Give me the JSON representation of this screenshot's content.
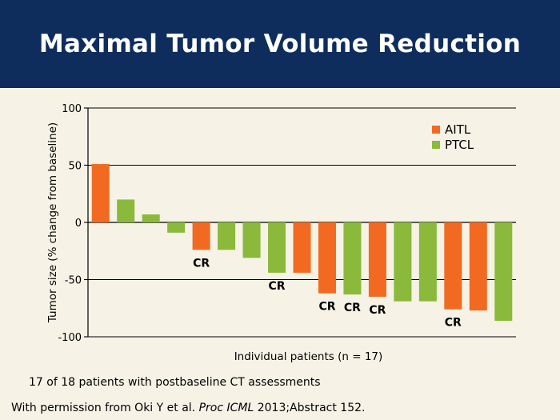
{
  "slide": {
    "title": "Maximal Tumor Volume Reduction",
    "note": "17 of 18 patients with postbaseline CT assessments",
    "credit_prefix": "With permission from Oki Y et al. ",
    "credit_journal": "Proc ICML",
    "credit_suffix": " 2013;Abstract 152."
  },
  "colors": {
    "header_bg": "#0f2d5c",
    "AITL": "#f26a21",
    "PTCL": "#8ab93b"
  },
  "chart_data": {
    "type": "bar",
    "title": "",
    "xlabel": "Individual patients (n = 17)",
    "ylabel": "Tumor size (% change from baseline)",
    "ylim": [
      -100,
      100
    ],
    "yticks": [
      100,
      50,
      0,
      -50,
      -100
    ],
    "grid": true,
    "legend_position": "top-right",
    "legend": [
      "AITL",
      "PTCL"
    ],
    "bars": [
      {
        "value": 51,
        "group": "AITL",
        "label": ""
      },
      {
        "value": 20,
        "group": "PTCL",
        "label": ""
      },
      {
        "value": 7,
        "group": "PTCL",
        "label": ""
      },
      {
        "value": -9,
        "group": "PTCL",
        "label": ""
      },
      {
        "value": -24,
        "group": "AITL",
        "label": "CR"
      },
      {
        "value": -24,
        "group": "PTCL",
        "label": ""
      },
      {
        "value": -31,
        "group": "PTCL",
        "label": ""
      },
      {
        "value": -44,
        "group": "PTCL",
        "label": "CR"
      },
      {
        "value": -44,
        "group": "AITL",
        "label": ""
      },
      {
        "value": -62,
        "group": "AITL",
        "label": "CR"
      },
      {
        "value": -63,
        "group": "PTCL",
        "label": "CR"
      },
      {
        "value": -65,
        "group": "AITL",
        "label": "CR"
      },
      {
        "value": -69,
        "group": "PTCL",
        "label": ""
      },
      {
        "value": -69,
        "group": "PTCL",
        "label": ""
      },
      {
        "value": -76,
        "group": "AITL",
        "label": "CR"
      },
      {
        "value": -77,
        "group": "AITL",
        "label": ""
      },
      {
        "value": -86,
        "group": "PTCL",
        "label": ""
      }
    ]
  }
}
